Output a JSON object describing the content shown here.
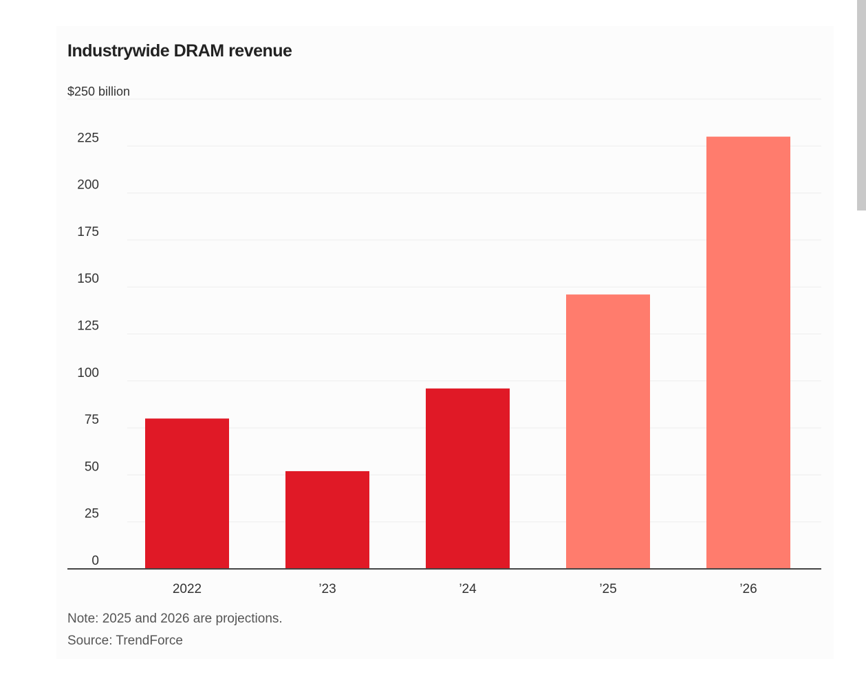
{
  "chart_data": {
    "type": "bar",
    "title": "Industrywide DRAM revenue",
    "unit_label": "$250 billion",
    "categories": [
      "2022",
      "’23",
      "’24",
      "’25",
      "’26"
    ],
    "values": [
      80,
      52,
      96,
      146,
      230
    ],
    "projected": [
      false,
      false,
      false,
      true,
      true
    ],
    "ylim": [
      0,
      250
    ],
    "yticks": [
      "0",
      "25",
      "50",
      "75",
      "100",
      "125",
      "150",
      "175",
      "200",
      "225"
    ],
    "xlabel": "",
    "ylabel": "",
    "grid": true,
    "colors": {
      "actual": "#e01926",
      "projected": "#ff7c6d",
      "axis": "#444444",
      "grid": "#ededed",
      "tick_text": "#333333"
    }
  },
  "footer": {
    "note": "Note: 2025 and 2026 are projections.",
    "source": "Source: TrendForce"
  }
}
